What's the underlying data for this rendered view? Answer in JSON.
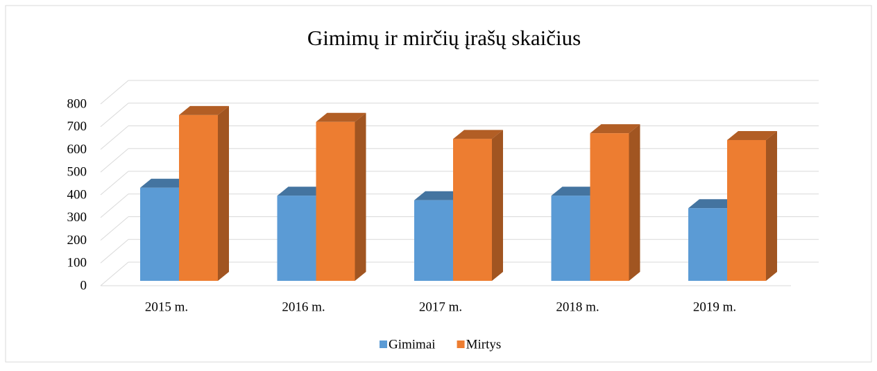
{
  "chart_data": {
    "type": "bar3d",
    "title": "Gimimų ir mirčių įrašų skaičius",
    "categories": [
      "2015 m.",
      "2016 m.",
      "2017 m.",
      "2018 m.",
      "2019 m."
    ],
    "series": [
      {
        "name": "Gimimai",
        "color": "#5b9bd5",
        "values": [
          410,
          375,
          355,
          375,
          320
        ]
      },
      {
        "name": "Mirtys",
        "color": "#ed7d31",
        "values": [
          730,
          700,
          625,
          650,
          620
        ]
      }
    ],
    "ylim": [
      0,
      800
    ],
    "yticks": [
      0,
      100,
      200,
      300,
      400,
      500,
      600,
      700,
      800
    ],
    "grid": true,
    "legend": "bottom"
  }
}
